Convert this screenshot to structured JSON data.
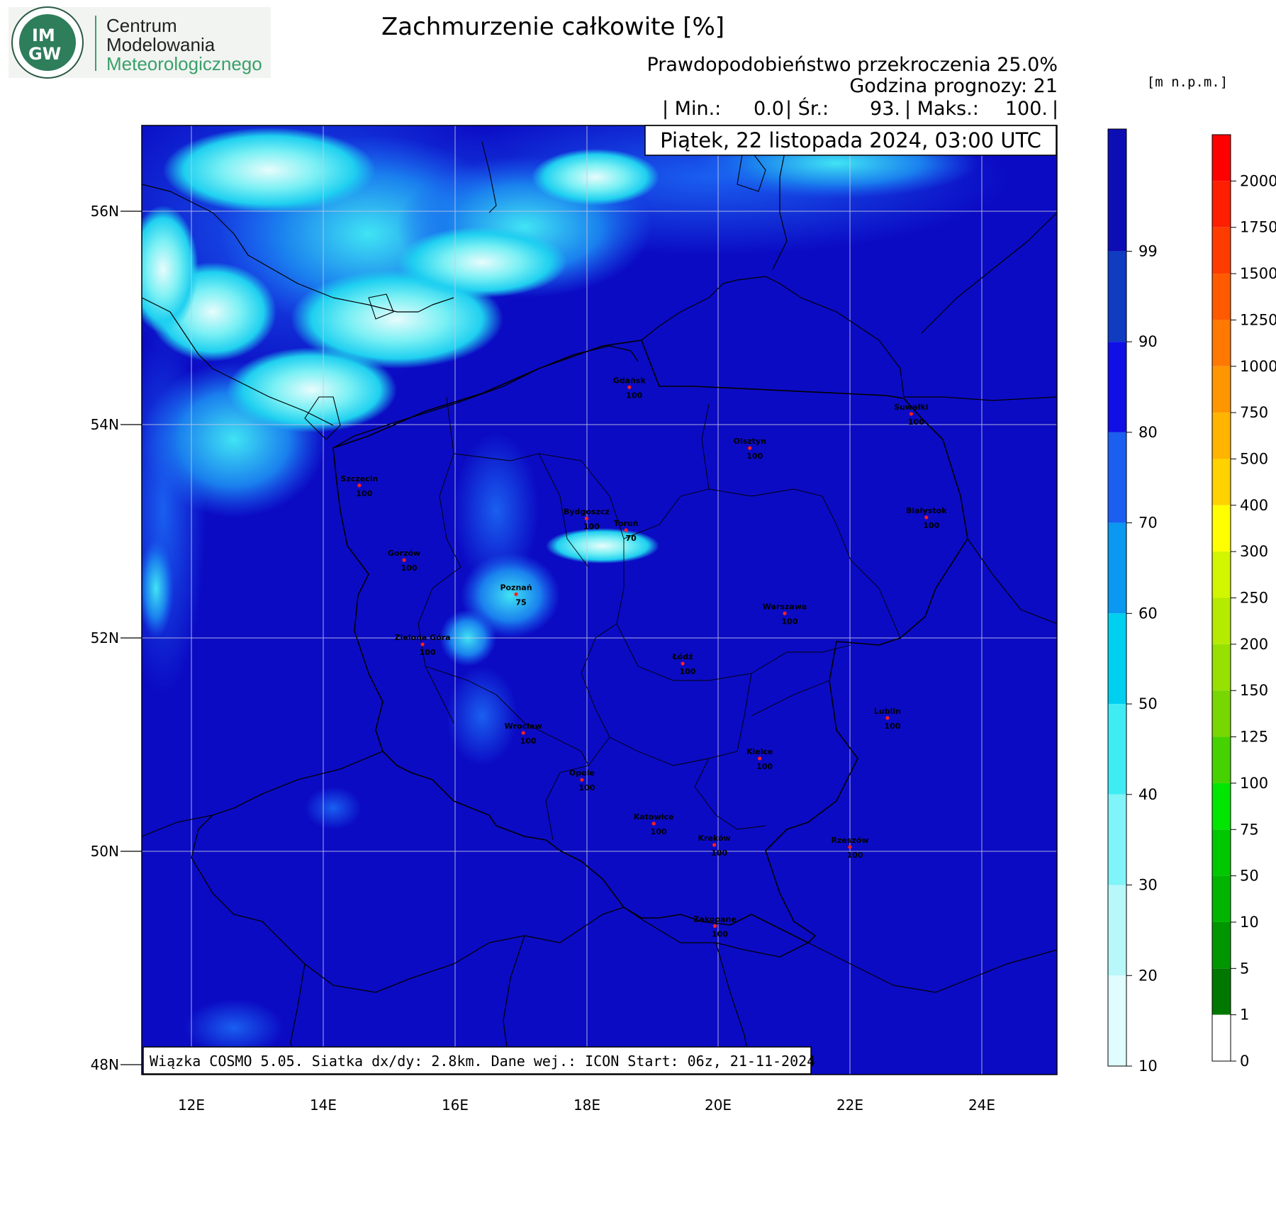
{
  "logo": {
    "badge_line1": "IM",
    "badge_line2": "GW",
    "name_line1": "Centrum",
    "name_line2": "Modelowania",
    "name_line3": "Meteorologicznego",
    "colors": {
      "green": "#3aa06a",
      "dark": "#1f4d3a"
    }
  },
  "header": {
    "title": "Zachmurzenie całkowite [%]",
    "probability": "Prawdopodobieństwo przekroczenia 25.0%",
    "forecast_hour": "Godzina prognozy: 21",
    "stats": {
      "min_label": "| Min.:",
      "min_value": "0.0",
      "mean_label": "| Śr.:",
      "mean_value": "93.",
      "max_label": "| Maks.:",
      "max_value": "100.",
      "end": "|"
    },
    "date": "Piątek, 22 listopada 2024, 03:00 UTC"
  },
  "map": {
    "background_color": "#0b0bc4",
    "lat_labels": [
      "56N",
      "54N",
      "52N",
      "50N",
      "48N"
    ],
    "lon_labels": [
      "12E",
      "14E",
      "16E",
      "18E",
      "20E",
      "22E",
      "24E"
    ],
    "footer": "Wiązka COSMO 5.05. Siatka dx/dy: 2.8km. Dane wej.: ICON Start: 06z, 21-11-2024",
    "cities": [
      {
        "name": "Gdańsk",
        "value": "100",
        "lon": 18.65,
        "lat": 54.35
      },
      {
        "name": "Suwałki",
        "value": "100",
        "lon": 22.93,
        "lat": 54.1
      },
      {
        "name": "Olsztyn",
        "value": "100",
        "lon": 20.48,
        "lat": 53.78
      },
      {
        "name": "Szczecin",
        "value": "100",
        "lon": 14.55,
        "lat": 53.43
      },
      {
        "name": "Białystok",
        "value": "100",
        "lon": 23.16,
        "lat": 53.13
      },
      {
        "name": "Bydgoszcz",
        "value": "100",
        "lon": 18.0,
        "lat": 53.12
      },
      {
        "name": "Toruń",
        "value": "70",
        "lon": 18.6,
        "lat": 53.01
      },
      {
        "name": "Gorzów",
        "value": "100",
        "lon": 15.23,
        "lat": 52.73
      },
      {
        "name": "Poznań",
        "value": "75",
        "lon": 16.93,
        "lat": 52.41
      },
      {
        "name": "Warszawa",
        "value": "100",
        "lon": 21.01,
        "lat": 52.23
      },
      {
        "name": "Zielona Góra",
        "value": "100",
        "lon": 15.51,
        "lat": 51.94
      },
      {
        "name": "Łódź",
        "value": "100",
        "lon": 19.46,
        "lat": 51.76
      },
      {
        "name": "Lublin",
        "value": "100",
        "lon": 22.57,
        "lat": 51.25
      },
      {
        "name": "Wrocław",
        "value": "100",
        "lon": 17.04,
        "lat": 51.11
      },
      {
        "name": "Kielce",
        "value": "100",
        "lon": 20.63,
        "lat": 50.87
      },
      {
        "name": "Opole",
        "value": "100",
        "lon": 17.93,
        "lat": 50.67
      },
      {
        "name": "Katowice",
        "value": "100",
        "lon": 19.02,
        "lat": 50.26
      },
      {
        "name": "Kraków",
        "value": "100",
        "lon": 19.94,
        "lat": 50.06
      },
      {
        "name": "Rzeszów",
        "value": "100",
        "lon": 22.0,
        "lat": 50.04
      },
      {
        "name": "Zakopane",
        "value": "100",
        "lon": 19.95,
        "lat": 49.3
      }
    ]
  },
  "colorbar_cloud": {
    "labels": [
      "99",
      "90",
      "80",
      "70",
      "60",
      "50",
      "40",
      "30",
      "20",
      "10"
    ],
    "colors": [
      "#0d0db4",
      "#0f3cc0",
      "#0f0fe6",
      "#1a5ff0",
      "#0a98f0",
      "#00d0f0",
      "#40ecf4",
      "#80f4f8",
      "#b8f8fa",
      "#e0fcfc"
    ]
  },
  "colorbar_height": {
    "unit": "[m n.p.m.]",
    "labels": [
      "2000",
      "1750",
      "1500",
      "1250",
      "1000",
      "750",
      "500",
      "400",
      "300",
      "250",
      "200",
      "150",
      "125",
      "100",
      "75",
      "50",
      "10",
      "5",
      "1",
      "0"
    ],
    "colors": [
      "#ff0000",
      "#ff1e00",
      "#ff3c00",
      "#ff5a00",
      "#ff7800",
      "#ff9600",
      "#ffb400",
      "#ffd200",
      "#ffff00",
      "#d2f500",
      "#b4eb00",
      "#96e100",
      "#78d700",
      "#46d200",
      "#00e600",
      "#00c800",
      "#00b400",
      "#009600",
      "#007800",
      "#ffffff"
    ]
  }
}
